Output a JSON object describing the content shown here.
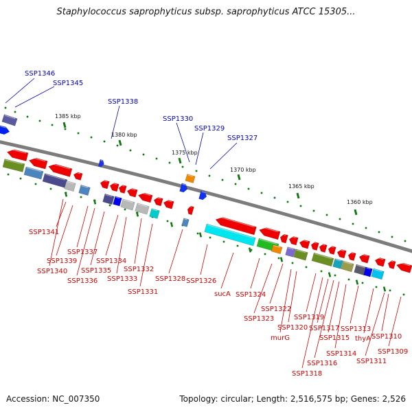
{
  "title": "Staphylococcus saprophyticus subsp. saprophyticus ATCC 15305...",
  "footer": {
    "accession": "Accession: NC_007350",
    "topology": "Topology: circular; Length: 2,516,575 bp; Genes: 2,526"
  },
  "scale": {
    "ticks": [
      "1385 kbp",
      "1380 kbp",
      "1375 kbp",
      "1370 kbp",
      "1365 kbp",
      "1360 kbp"
    ]
  },
  "labels": {
    "top": [
      "SSP1346",
      "SSP1345",
      "SSP1338",
      "SSP1330",
      "SSP1329",
      "SSP1327"
    ],
    "bottom": [
      "SSP1341",
      "SSP1339",
      "SSP1340",
      "SSP1337",
      "SSP1336",
      "SSP1335",
      "SSP1334",
      "SSP1333",
      "SSP1332",
      "SSP1331",
      "SSP1328",
      "SSP1326",
      "sucA",
      "SSP1324",
      "SSP1323",
      "SSP1322",
      "murG",
      "SSP1320",
      "SSP1319",
      "SSP1318",
      "SSP1317",
      "SSP1316",
      "SSP1315",
      "SSP1314",
      "SSP1313",
      "thyA",
      "SSP1311",
      "SSP1310",
      "SSP1309"
    ]
  },
  "colors": {
    "forward_gene": "#0000ee",
    "reverse_gene": "#ee0000",
    "top_label": "#0000bb",
    "bottom_label": "#cc0000",
    "backbone": "#808080",
    "tick": "#117711"
  }
}
